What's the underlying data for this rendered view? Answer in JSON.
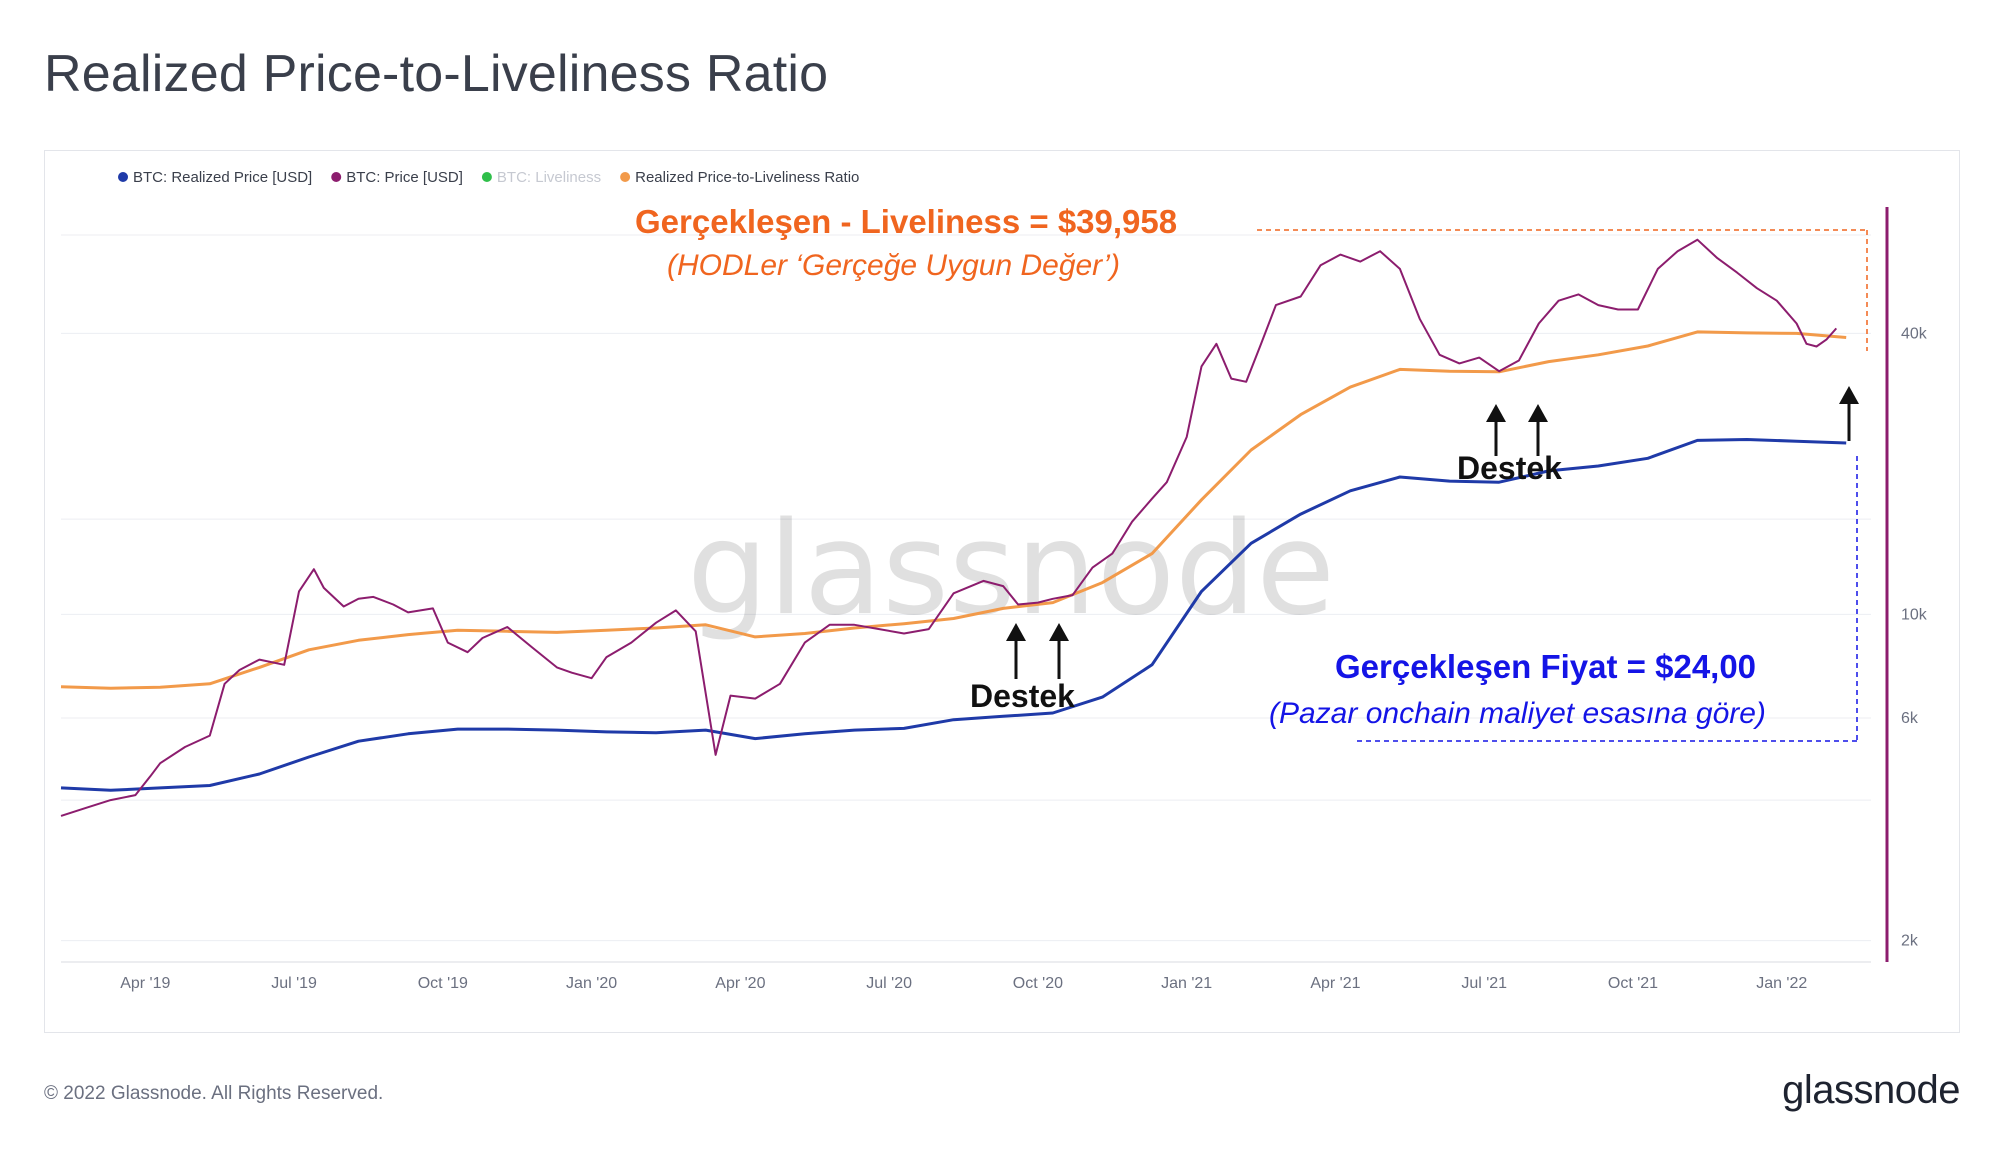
{
  "title": "Realized Price-to-Liveliness Ratio",
  "footer": {
    "copyright": "© 2022 Glassnode. All Rights Reserved.",
    "logo": "glassnode"
  },
  "watermark": "glassnode",
  "colors": {
    "realized": "#1f3aa8",
    "price": "#8c1d6e",
    "liveliness": "#2fbf4a",
    "ratio": "#f29a4a",
    "orange_text": "#f0651f",
    "blue_text": "#1414e6",
    "grid": "#eceef2",
    "axis_right": "#8c1d6e"
  },
  "chart_data": {
    "type": "line",
    "y_scale": "log",
    "ylim": [
      1800,
      75000
    ],
    "y_ticks": [
      {
        "value": 2000,
        "label": "2k"
      },
      {
        "value": 6000,
        "label": "6k"
      },
      {
        "value": 10000,
        "label": "10k"
      },
      {
        "value": 40000,
        "label": "40k"
      }
    ],
    "xlim": [
      0,
      36.5
    ],
    "x_ticks": [
      {
        "value": 1.7,
        "label": "Apr '19"
      },
      {
        "value": 4.7,
        "label": "Jul '19"
      },
      {
        "value": 7.7,
        "label": "Oct '19"
      },
      {
        "value": 10.7,
        "label": "Jan '20"
      },
      {
        "value": 13.7,
        "label": "Apr '20"
      },
      {
        "value": 16.7,
        "label": "Jul '20"
      },
      {
        "value": 19.7,
        "label": "Oct '20"
      },
      {
        "value": 22.7,
        "label": "Jan '21"
      },
      {
        "value": 25.7,
        "label": "Apr '21"
      },
      {
        "value": 28.7,
        "label": "Jul '21"
      },
      {
        "value": 31.7,
        "label": "Oct '21"
      },
      {
        "value": 34.7,
        "label": "Jan '22"
      }
    ],
    "legend": [
      {
        "label": "BTC: Realized Price [USD]",
        "color": "#1f3aa8",
        "muted": false
      },
      {
        "label": "BTC: Price [USD]",
        "color": "#8c1d6e",
        "muted": false
      },
      {
        "label": "BTC: Liveliness",
        "color": "#2fbf4a",
        "muted": true
      },
      {
        "label": "Realized Price-to-Liveliness Ratio",
        "color": "#f29a4a",
        "muted": false
      }
    ],
    "series": [
      {
        "name": "BTC: Realized Price [USD]",
        "color": "#1f3aa8",
        "width": 3,
        "points": [
          [
            0,
            4250
          ],
          [
            1,
            4200
          ],
          [
            2,
            4250
          ],
          [
            3,
            4300
          ],
          [
            4,
            4550
          ],
          [
            5,
            4950
          ],
          [
            6,
            5350
          ],
          [
            7,
            5550
          ],
          [
            8,
            5680
          ],
          [
            9,
            5680
          ],
          [
            10,
            5650
          ],
          [
            11,
            5600
          ],
          [
            12,
            5580
          ],
          [
            13,
            5650
          ],
          [
            14,
            5420
          ],
          [
            15,
            5550
          ],
          [
            16,
            5650
          ],
          [
            17,
            5700
          ],
          [
            18,
            5950
          ],
          [
            19,
            6050
          ],
          [
            20,
            6150
          ],
          [
            21,
            6650
          ],
          [
            22,
            7800
          ],
          [
            23,
            11200
          ],
          [
            24,
            14200
          ],
          [
            25,
            16400
          ],
          [
            26,
            18400
          ],
          [
            27,
            19700
          ],
          [
            28,
            19300
          ],
          [
            29,
            19200
          ],
          [
            30,
            20300
          ],
          [
            31,
            20800
          ],
          [
            32,
            21600
          ],
          [
            33,
            23600
          ],
          [
            34,
            23700
          ],
          [
            35,
            23500
          ],
          [
            36,
            23300
          ]
        ]
      },
      {
        "name": "Realized Price-to-Liveliness Ratio",
        "color": "#f29a4a",
        "width": 3,
        "points": [
          [
            0,
            7000
          ],
          [
            1,
            6950
          ],
          [
            2,
            6980
          ],
          [
            3,
            7100
          ],
          [
            4,
            7700
          ],
          [
            5,
            8400
          ],
          [
            6,
            8800
          ],
          [
            7,
            9050
          ],
          [
            8,
            9250
          ],
          [
            9,
            9200
          ],
          [
            10,
            9150
          ],
          [
            11,
            9250
          ],
          [
            12,
            9350
          ],
          [
            13,
            9500
          ],
          [
            14,
            8950
          ],
          [
            15,
            9100
          ],
          [
            16,
            9350
          ],
          [
            17,
            9550
          ],
          [
            18,
            9800
          ],
          [
            19,
            10300
          ],
          [
            20,
            10600
          ],
          [
            21,
            11700
          ],
          [
            22,
            13500
          ],
          [
            23,
            17600
          ],
          [
            24,
            22500
          ],
          [
            25,
            26800
          ],
          [
            26,
            30700
          ],
          [
            27,
            33500
          ],
          [
            28,
            33200
          ],
          [
            29,
            33100
          ],
          [
            30,
            34800
          ],
          [
            31,
            36000
          ],
          [
            32,
            37600
          ],
          [
            33,
            40300
          ],
          [
            34,
            40100
          ],
          [
            35,
            40000
          ],
          [
            36,
            39200
          ]
        ]
      },
      {
        "name": "BTC: Price [USD]",
        "color": "#8c1d6e",
        "width": 2,
        "points": [
          [
            0,
            3700
          ],
          [
            0.5,
            3850
          ],
          [
            1,
            4000
          ],
          [
            1.5,
            4100
          ],
          [
            1.8,
            4500
          ],
          [
            2,
            4800
          ],
          [
            2.5,
            5200
          ],
          [
            3,
            5500
          ],
          [
            3.3,
            7100
          ],
          [
            3.6,
            7600
          ],
          [
            4,
            8000
          ],
          [
            4.5,
            7800
          ],
          [
            4.8,
            11200
          ],
          [
            5.1,
            12500
          ],
          [
            5.3,
            11400
          ],
          [
            5.7,
            10400
          ],
          [
            6,
            10800
          ],
          [
            6.3,
            10900
          ],
          [
            6.7,
            10500
          ],
          [
            7,
            10100
          ],
          [
            7.5,
            10300
          ],
          [
            7.8,
            8700
          ],
          [
            8.2,
            8300
          ],
          [
            8.5,
            8900
          ],
          [
            9,
            9400
          ],
          [
            9.5,
            8500
          ],
          [
            10,
            7700
          ],
          [
            10.3,
            7500
          ],
          [
            10.7,
            7300
          ],
          [
            11,
            8100
          ],
          [
            11.5,
            8700
          ],
          [
            12,
            9600
          ],
          [
            12.4,
            10200
          ],
          [
            12.8,
            9200
          ],
          [
            13.2,
            5000
          ],
          [
            13.5,
            6700
          ],
          [
            14,
            6600
          ],
          [
            14.5,
            7100
          ],
          [
            15,
            8700
          ],
          [
            15.5,
            9500
          ],
          [
            16,
            9500
          ],
          [
            16.5,
            9300
          ],
          [
            17,
            9100
          ],
          [
            17.5,
            9300
          ],
          [
            18,
            11100
          ],
          [
            18.6,
            11800
          ],
          [
            19,
            11500
          ],
          [
            19.3,
            10500
          ],
          [
            19.7,
            10600
          ],
          [
            20,
            10800
          ],
          [
            20.4,
            11000
          ],
          [
            20.8,
            12600
          ],
          [
            21.2,
            13500
          ],
          [
            21.6,
            15800
          ],
          [
            22,
            17700
          ],
          [
            22.3,
            19200
          ],
          [
            22.7,
            24000
          ],
          [
            23,
            34000
          ],
          [
            23.3,
            38000
          ],
          [
            23.6,
            32000
          ],
          [
            23.9,
            31500
          ],
          [
            24.2,
            38000
          ],
          [
            24.5,
            46000
          ],
          [
            25,
            48000
          ],
          [
            25.4,
            56000
          ],
          [
            25.8,
            59000
          ],
          [
            26.2,
            57000
          ],
          [
            26.6,
            60000
          ],
          [
            27,
            55000
          ],
          [
            27.4,
            43000
          ],
          [
            27.8,
            36000
          ],
          [
            28.2,
            34500
          ],
          [
            28.6,
            35500
          ],
          [
            29,
            33200
          ],
          [
            29.4,
            35000
          ],
          [
            29.8,
            42000
          ],
          [
            30.2,
            47000
          ],
          [
            30.6,
            48500
          ],
          [
            31,
            46000
          ],
          [
            31.4,
            45000
          ],
          [
            31.8,
            45000
          ],
          [
            32.2,
            55000
          ],
          [
            32.6,
            60000
          ],
          [
            33,
            63500
          ],
          [
            33.4,
            58000
          ],
          [
            33.8,
            54000
          ],
          [
            34.2,
            50000
          ],
          [
            34.6,
            47000
          ],
          [
            35,
            42000
          ],
          [
            35.2,
            38000
          ],
          [
            35.4,
            37500
          ],
          [
            35.6,
            38800
          ],
          [
            35.8,
            41000
          ]
        ]
      }
    ],
    "annotations": {
      "liveliness_title": "Gerçekleşen - Liveliness = $39,958",
      "liveliness_sub": "(HODLer ‘Gerçeğe Uygun Değer’)",
      "realized_title": "Gerçekleşen Fiyat = $24,00",
      "realized_sub": "(Pazar onchain maliyet esasına göre)",
      "support_label_1": "Destek",
      "support_label_2": "Destek"
    }
  }
}
